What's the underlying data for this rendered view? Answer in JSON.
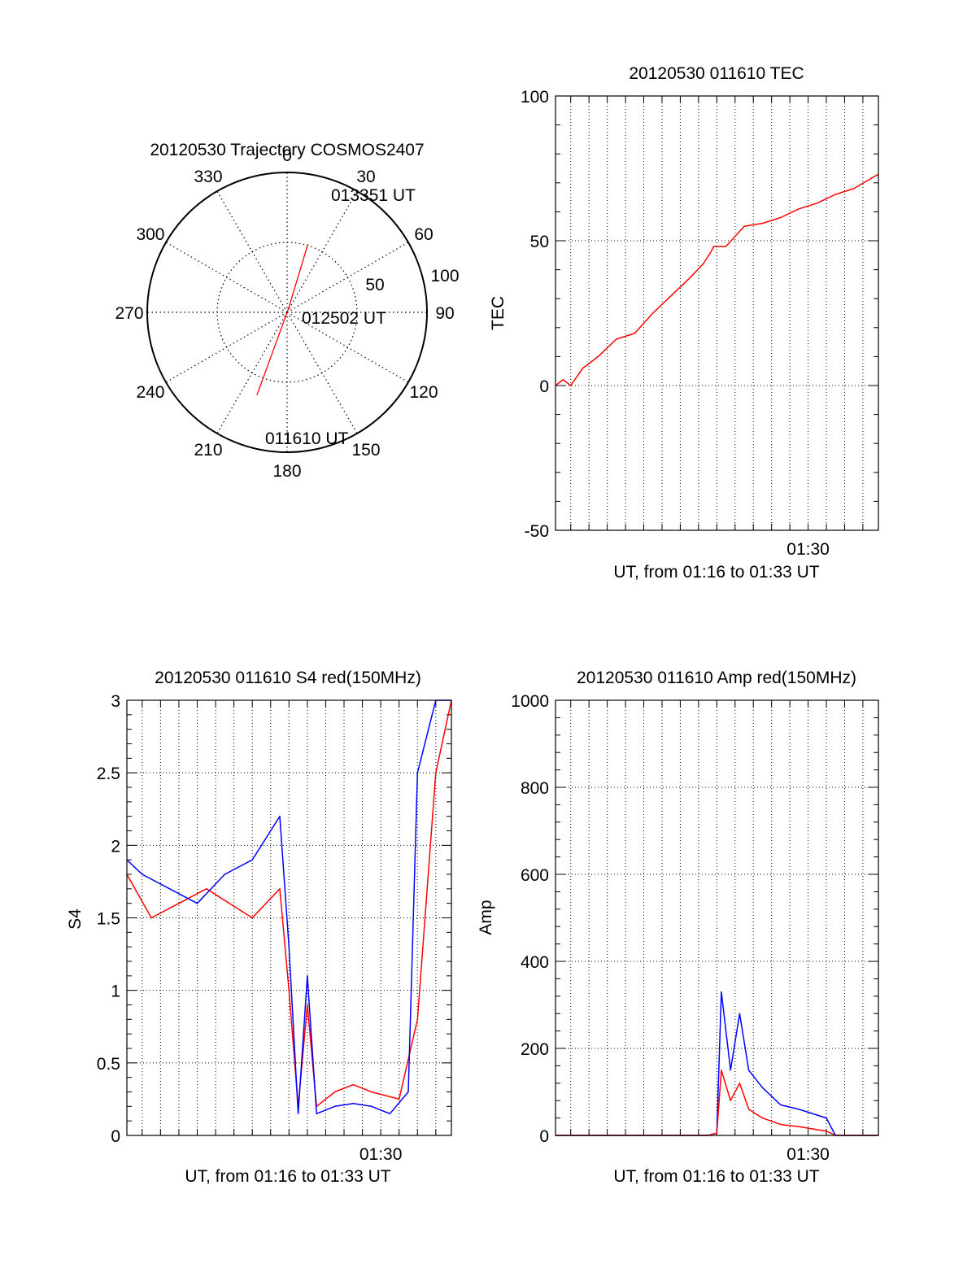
{
  "chart_data": [
    {
      "type": "polar",
      "title": "20120530 Trajectory COSMOS2407",
      "angle_labels": [
        "0",
        "30",
        "60",
        "90",
        "120",
        "150",
        "180",
        "210",
        "240",
        "270",
        "300",
        "330"
      ],
      "angles": [
        0,
        30,
        60,
        90,
        120,
        150,
        180,
        210,
        240,
        270,
        300,
        330
      ],
      "radial_labels": [
        "50",
        "100"
      ],
      "radial_values": [
        50,
        100
      ],
      "rmax": 100,
      "grid": true,
      "trajectory_color": "#ff0000",
      "trajectory": [
        {
          "az": 200,
          "r": 63,
          "label": "011610 UT"
        },
        {
          "az": 20,
          "r": 3,
          "label": "012502 UT"
        },
        {
          "az": 17,
          "r": 51,
          "label": "013351 UT"
        }
      ]
    },
    {
      "type": "line",
      "title": "20120530 011610 TEC",
      "xlabel": "UT, from 01:16 to 01:33 UT",
      "ylabel": "TEC",
      "xlim": [
        "01:16:10",
        "01:33:51"
      ],
      "xtick_labels": [
        {
          "t": "01:30:00",
          "label": "01:30"
        }
      ],
      "ylim": [
        -50,
        100
      ],
      "yticks": [
        -50,
        0,
        50,
        100
      ],
      "grid": true,
      "series": [
        {
          "color": "#ff0000",
          "x": [
            "01:16:10",
            "01:16:35",
            "01:17:00",
            "01:17:40",
            "01:18:30",
            "01:19:30",
            "01:20:30",
            "01:21:30",
            "01:22:30",
            "01:23:30",
            "01:24:15",
            "01:24:40",
            "01:24:50",
            "01:25:00",
            "01:25:30",
            "01:26:30",
            "01:27:30",
            "01:28:30",
            "01:29:30",
            "01:30:30",
            "01:31:30",
            "01:32:30",
            "01:33:51"
          ],
          "y": [
            0,
            2,
            0,
            6,
            10,
            16,
            18,
            25,
            31,
            37,
            42,
            46,
            48,
            48,
            48,
            55,
            56,
            58,
            61,
            63,
            66,
            68,
            73
          ]
        }
      ]
    },
    {
      "type": "line",
      "title": "20120530 011610 S4 red(150MHz)",
      "xlabel": "UT, from 01:16 to 01:33 UT",
      "ylabel": "S4",
      "xlim": [
        "01:16:10",
        "01:33:51"
      ],
      "xtick_labels": [
        {
          "t": "01:30:00",
          "label": "01:30"
        }
      ],
      "ylim": [
        0,
        3
      ],
      "yticks": [
        0,
        0.5,
        1,
        1.5,
        2,
        2.5,
        3
      ],
      "ytick_labels": [
        "0",
        "0.5",
        "1",
        "1.5",
        "2",
        "2.5",
        "3"
      ],
      "grid": true,
      "series": [
        {
          "color": "#ff0000",
          "x": [
            "01:16:10",
            "01:17:30",
            "01:19:00",
            "01:20:30",
            "01:23:00",
            "01:24:30",
            "01:25:00",
            "01:25:30",
            "01:26:00",
            "01:26:30",
            "01:27:30",
            "01:28:30",
            "01:29:30",
            "01:31:00",
            "01:32:00",
            "01:33:00",
            "01:33:51"
          ],
          "y": [
            1.8,
            1.5,
            1.6,
            1.7,
            1.5,
            1.7,
            1.0,
            0.2,
            0.9,
            0.2,
            0.3,
            0.35,
            0.3,
            0.25,
            0.8,
            2.5,
            3.0
          ]
        },
        {
          "color": "#0000ff",
          "x": [
            "01:16:10",
            "01:17:00",
            "01:18:30",
            "01:20:00",
            "01:21:30",
            "01:23:00",
            "01:24:30",
            "01:25:00",
            "01:25:30",
            "01:26:00",
            "01:26:30",
            "01:27:30",
            "01:28:30",
            "01:29:30",
            "01:30:30",
            "01:31:30",
            "01:32:00",
            "01:33:00",
            "01:33:51"
          ],
          "y": [
            1.9,
            1.8,
            1.7,
            1.6,
            1.8,
            1.9,
            2.2,
            1.3,
            0.15,
            1.1,
            0.15,
            0.2,
            0.22,
            0.2,
            0.15,
            0.3,
            2.5,
            3.0,
            3.0
          ]
        }
      ]
    },
    {
      "type": "line",
      "title": "20120530 011610 Amp red(150MHz)",
      "xlabel": "UT, from 01:16 to 01:33 UT",
      "ylabel": "Amp",
      "xlim": [
        "01:16:10",
        "01:33:51"
      ],
      "xtick_labels": [
        {
          "t": "01:30:00",
          "label": "01:30"
        }
      ],
      "ylim": [
        0,
        1000
      ],
      "yticks": [
        0,
        200,
        400,
        600,
        800,
        1000
      ],
      "grid": true,
      "series": [
        {
          "color": "#0000ff",
          "x": [
            "01:16:10",
            "01:24:30",
            "01:25:00",
            "01:25:15",
            "01:25:45",
            "01:26:15",
            "01:26:45",
            "01:27:30",
            "01:28:30",
            "01:29:30",
            "01:31:00",
            "01:31:30",
            "01:33:51"
          ],
          "y": [
            0,
            0,
            5,
            330,
            150,
            280,
            150,
            110,
            70,
            60,
            40,
            0,
            0
          ]
        },
        {
          "color": "#ff0000",
          "x": [
            "01:16:10",
            "01:24:30",
            "01:25:00",
            "01:25:15",
            "01:25:45",
            "01:26:15",
            "01:26:45",
            "01:27:30",
            "01:28:30",
            "01:29:30",
            "01:31:00",
            "01:31:30",
            "01:33:51"
          ],
          "y": [
            0,
            0,
            5,
            150,
            80,
            120,
            60,
            40,
            25,
            20,
            10,
            0,
            0
          ]
        }
      ]
    }
  ]
}
